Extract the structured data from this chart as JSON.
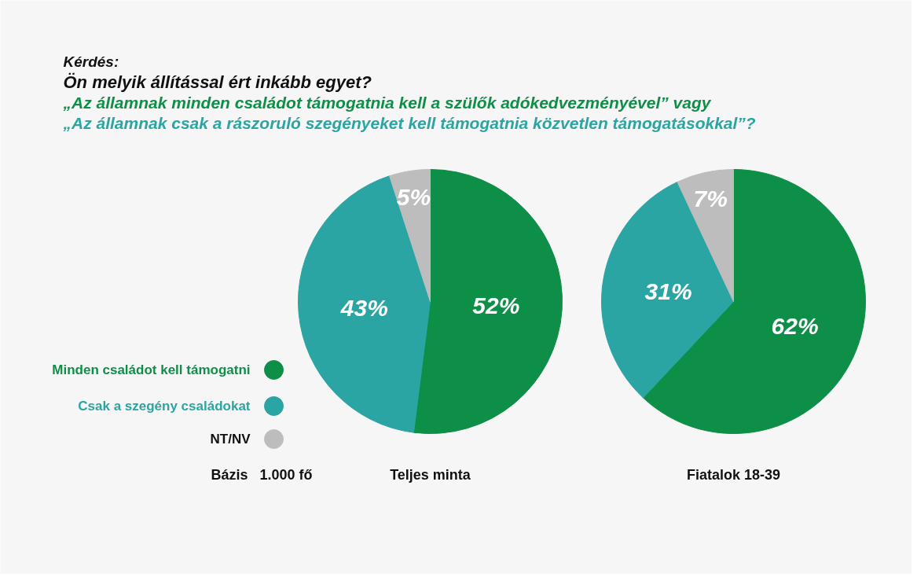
{
  "chart_data": [
    {
      "type": "pie",
      "title": "Kérdés:",
      "subtitle": "Ön melyik állítással ért inkább egyet?",
      "annotations": [
        "„Az államnak minden családot támogatnia kell a szülők adókedvezményével” vagy",
        "„Az államnak csak a rászoruló szegényeket kell támogatnia közvetlen támogatásokkal”?",
        "Bázis",
        "1.000 fő"
      ],
      "xlabel": "Teljes minta",
      "categories": [
        "Minden családot kell támogatni",
        "Csak a szegény családokat",
        "NT/NV"
      ],
      "values": [
        52,
        43,
        5
      ],
      "value_labels": [
        "52%",
        "43%",
        "5%"
      ],
      "colors": [
        "#0e8f48",
        "#2aa5a3",
        "#bdbdbd"
      ],
      "legend": "left"
    },
    {
      "type": "pie",
      "xlabel": "Fiatalok 18-39",
      "values": [
        62,
        31,
        7
      ],
      "value_labels": [
        "62%",
        "31%",
        "7%"
      ],
      "colors": [
        "#0e8f48",
        "#2aa5a3",
        "#bdbdbd"
      ]
    }
  ]
}
